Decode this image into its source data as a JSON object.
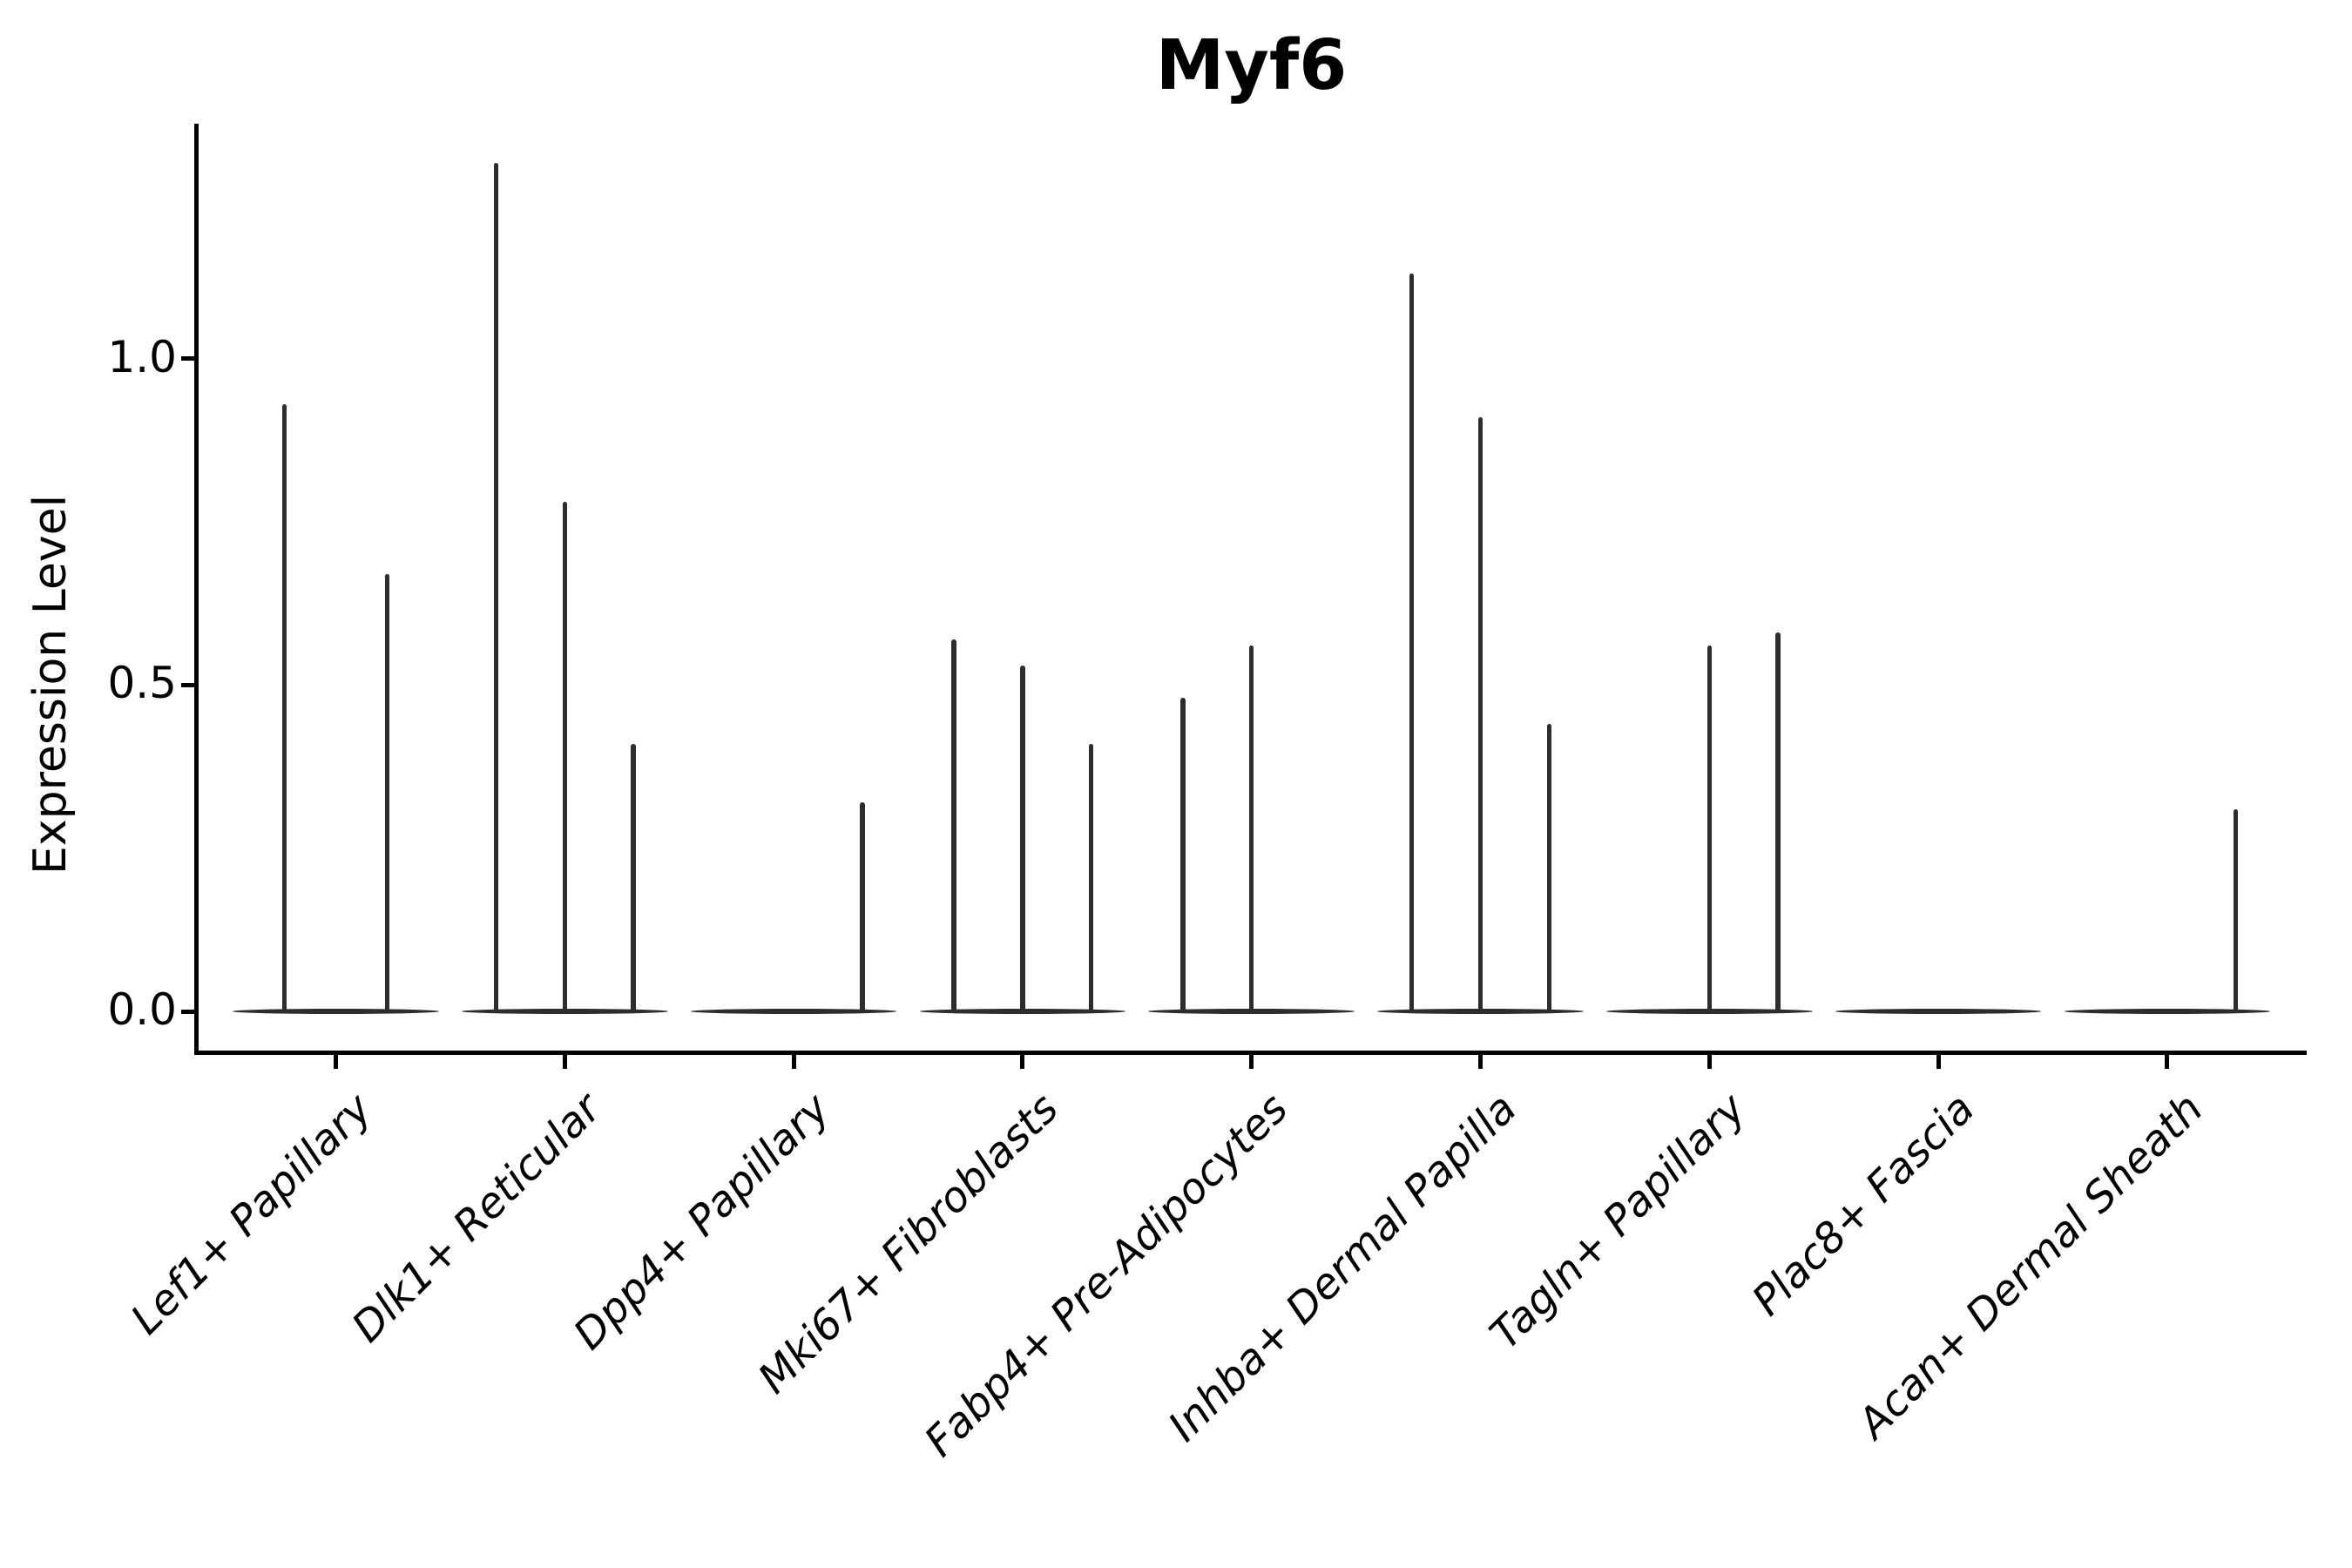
{
  "title": "Myf6",
  "y_axis": {
    "label": "Expression Level",
    "tick_labels": [
      "0.0",
      "0.5",
      "1.0"
    ]
  },
  "colors": {
    "violin_stroke": "#2d2d2d",
    "axis": "#000000",
    "background": "#ffffff"
  },
  "chart_data": {
    "type": "violin",
    "title": "Myf6",
    "xlabel": "",
    "ylabel": "Expression Level",
    "ylim": [
      0,
      1.36
    ],
    "yticks": [
      0.0,
      0.5,
      1.0
    ],
    "ytick_labels": [
      "0.0",
      "0.5",
      "1.0"
    ],
    "grid": false,
    "legend": "none",
    "x_tick_label_rotation_deg": 45,
    "x_tick_label_style": "italic",
    "categories": [
      "Lef1+ Papillary",
      "Dlk1+ Reticular",
      "Dpp4+ Papillary",
      "Mki67+ Fibroblasts",
      "Fabp4+ Pre-Adipocytes",
      "Inhba+ Dermal Papilla",
      "Tagln+ Papillary",
      "Plac8+ Fascia",
      "Acan+ Dermal Sheath"
    ],
    "groups": [
      {
        "category": "Lef1+ Papillary",
        "violin_spike_maxima": [
          0.93,
          0.67
        ]
      },
      {
        "category": "Dlk1+ Reticular",
        "violin_spike_maxima": [
          1.3,
          0.78,
          0.41
        ]
      },
      {
        "category": "Dpp4+ Papillary",
        "violin_spike_maxima": [
          0,
          0,
          0.32
        ]
      },
      {
        "category": "Mki67+ Fibroblasts",
        "violin_spike_maxima": [
          0.57,
          0.53,
          0.41
        ]
      },
      {
        "category": "Fabp4+ Pre-Adipocytes",
        "violin_spike_maxima": [
          0.48,
          0.56,
          0
        ]
      },
      {
        "category": "Inhba+ Dermal Papilla",
        "violin_spike_maxima": [
          1.13,
          0.91,
          0.44
        ]
      },
      {
        "category": "Tagln+ Papillary",
        "violin_spike_maxima": [
          0,
          0.56,
          0.58
        ]
      },
      {
        "category": "Plac8+ Fascia",
        "violin_spike_maxima": [
          0,
          0,
          0
        ]
      },
      {
        "category": "Acan+ Dermal Sheath",
        "violin_spike_maxima": [
          0,
          0,
          0.31
        ]
      }
    ]
  }
}
